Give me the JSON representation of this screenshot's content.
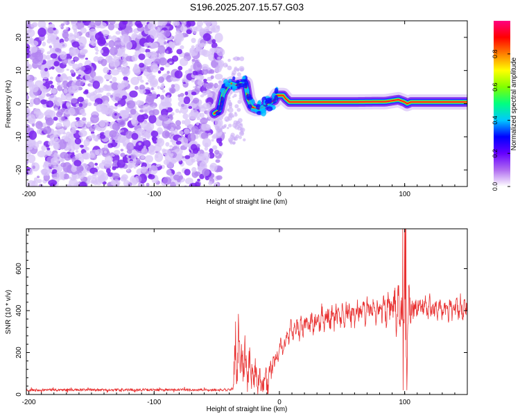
{
  "title": "S196.2025.207.15.57.G03",
  "chart_data": [
    {
      "type": "heatmap",
      "xlabel": "Height of straight line (km)",
      "ylabel": "Frequency (Hz)",
      "xlim": [
        -202,
        150
      ],
      "ylim": [
        -25,
        25
      ],
      "xticks": [
        -200,
        -100,
        0,
        100
      ],
      "yticks": [
        -20,
        -10,
        0,
        10,
        20
      ],
      "grid": false,
      "noise_region": {
        "x_from": -202,
        "x_to": -50
      },
      "trace": {
        "x": [
          -52,
          -48,
          -45,
          -42,
          -38,
          -35,
          -30,
          -27,
          -25,
          -22,
          -19,
          -16,
          -13,
          -10,
          -7,
          -4,
          -2,
          0,
          3,
          5,
          8,
          12,
          30,
          60,
          85,
          95,
          100,
          102,
          105,
          120,
          150
        ],
        "y": [
          -3,
          -2,
          3,
          5,
          6,
          5.5,
          6,
          6,
          1.5,
          -1,
          -1.5,
          -1.5,
          -1,
          0,
          0.5,
          1,
          2.5,
          2.5,
          2.5,
          1.5,
          0.5,
          0.5,
          0.5,
          0.5,
          0.6,
          1.2,
          0.5,
          0,
          0.5,
          0.5,
          0.5
        ]
      },
      "colorbar": {
        "label": "Normalized spectral amplitude",
        "range": [
          0,
          1
        ],
        "ticks": [
          0.0,
          0.2,
          0.4,
          0.6,
          0.8
        ],
        "tick_labels": [
          "0.0",
          "0.2",
          "0.4",
          "0.6",
          "0.8"
        ],
        "colors": [
          "#ffffff",
          "#b06cf0",
          "#6600ff",
          "#0000ff",
          "#00c8ff",
          "#00ff80",
          "#80ff00",
          "#ffff00",
          "#ff8000",
          "#ff0000",
          "#ff0080"
        ]
      }
    },
    {
      "type": "line",
      "xlabel": "Height of straight line (km)",
      "ylabel": "SNR (10 * v/v)",
      "xlim": [
        -202,
        150
      ],
      "ylim": [
        0,
        790
      ],
      "xticks": [
        -200,
        -100,
        0,
        100
      ],
      "yticks": [
        0,
        200,
        400,
        600
      ],
      "grid": false,
      "series_color": "#e83030",
      "envelope": {
        "x": [
          -202,
          -110,
          -100,
          -45,
          -40,
          -37,
          -35,
          -32,
          -28,
          -25,
          -22,
          -20,
          -15,
          -10,
          -5,
          0,
          5,
          10,
          20,
          30,
          40,
          50,
          60,
          70,
          80,
          90,
          95,
          100,
          102,
          104,
          106,
          110,
          120,
          130,
          140,
          150
        ],
        "baseline": [
          22,
          22,
          22,
          22,
          22,
          30,
          180,
          200,
          150,
          120,
          110,
          100,
          60,
          40,
          150,
          200,
          260,
          300,
          330,
          350,
          370,
          380,
          390,
          400,
          400,
          420,
          400,
          350,
          300,
          420,
          400,
          420,
          410,
          410,
          410,
          410
        ],
        "amplitude": [
          6,
          6,
          6,
          6,
          6,
          10,
          120,
          140,
          130,
          120,
          110,
          100,
          60,
          90,
          60,
          50,
          50,
          55,
          60,
          60,
          65,
          70,
          70,
          70,
          75,
          85,
          130,
          190,
          230,
          120,
          80,
          70,
          60,
          60,
          60,
          60
        ]
      }
    }
  ]
}
